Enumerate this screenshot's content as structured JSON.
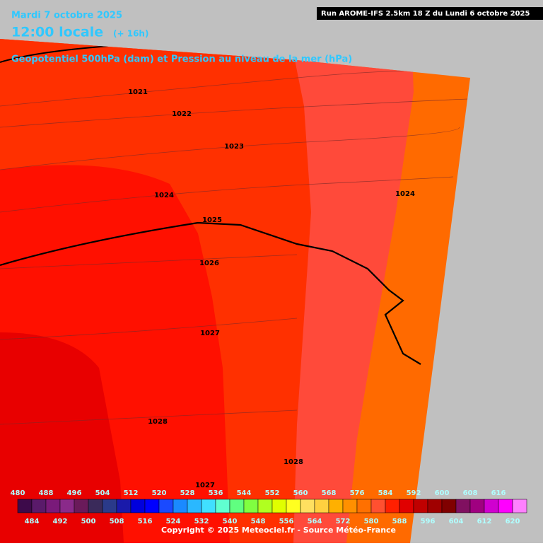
{
  "header": {
    "date": "Mardi 7 octobre 2025",
    "time": "12:00 locale",
    "lead": "(+ 16h)",
    "run": "Run AROME-IFS 2.5km 18 Z du Lundi 6 octobre 2025",
    "field": "Geopotentiel 500hPa (dam) et Pression au niveau de la mer (hPa)"
  },
  "isobar_labels": [
    1021,
    1022,
    1023,
    1024,
    1024,
    1025,
    1026,
    1027,
    1028,
    1028,
    1027
  ],
  "colorbar": {
    "values": [
      480,
      484,
      488,
      492,
      496,
      500,
      504,
      508,
      512,
      516,
      520,
      524,
      528,
      532,
      536,
      540,
      544,
      548,
      552,
      556,
      560,
      564,
      568,
      572,
      576,
      580,
      584,
      588,
      592,
      596,
      600,
      604,
      608,
      612,
      616,
      620
    ],
    "colors": [
      "#3d0a4a",
      "#5a1a6a",
      "#7a1a7a",
      "#8a2a8a",
      "#6a1a5a",
      "#3a2a5a",
      "#2a3a8a",
      "#1a1aaa",
      "#0000dd",
      "#0000ff",
      "#1a4aff",
      "#1a8aff",
      "#2ab8ff",
      "#40e0ff",
      "#60ffd0",
      "#60ff80",
      "#80ff40",
      "#b0ff20",
      "#e0ff00",
      "#ffff20",
      "#ffe060",
      "#ffd040",
      "#ffb000",
      "#ff9000",
      "#ff7000",
      "#ff5030",
      "#ff2000",
      "#e00000",
      "#c00000",
      "#a00000",
      "#800000",
      "#801060",
      "#a00080",
      "#d000d0",
      "#ff00ff",
      "#ff80ff"
    ]
  },
  "copyright": "Copyright © 2025 Meteociel.fr - Source Météo-France"
}
